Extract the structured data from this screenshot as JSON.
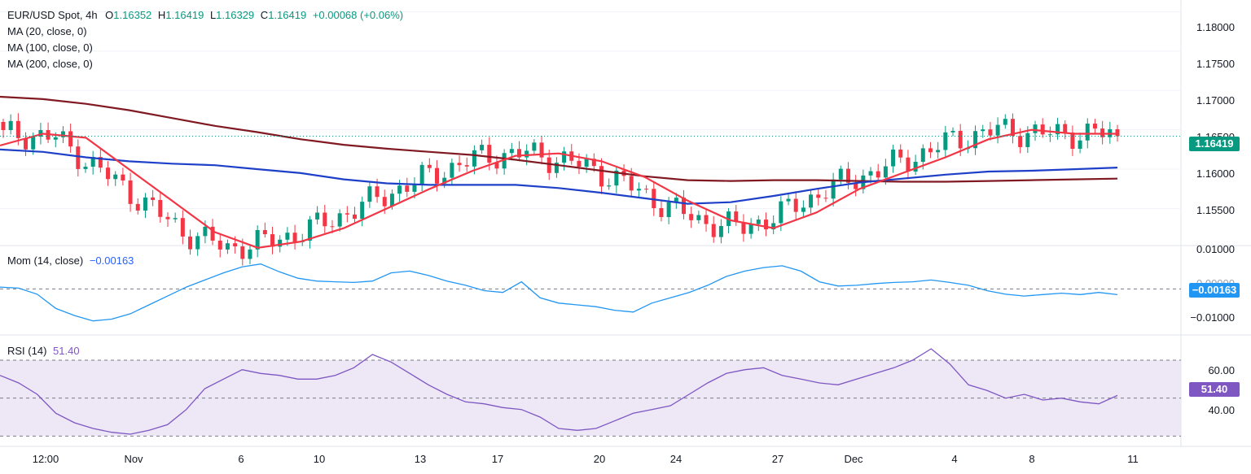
{
  "header": {
    "symbol": "EUR/USD Spot, 4h",
    "o_label": "O",
    "o_value": "1.16352",
    "h_label": "H",
    "h_value": "1.16419",
    "l_label": "L",
    "l_value": "1.16329",
    "c_label": "C",
    "c_value": "1.16419",
    "change": "+0.00068 (+0.06%)"
  },
  "indicators": {
    "ma20": "MA (20, close, 0)",
    "ma100": "MA (100, close, 0)",
    "ma200": "MA (200, close, 0)",
    "mom_label": "Mom (14, close)",
    "mom_value": "−0.00163",
    "rsi_label": "RSI (14)",
    "rsi_value": "51.40"
  },
  "price_badge": "1.16419",
  "mom_badge": "−0.00163",
  "rsi_badge": "51.40",
  "price_axis": [
    "1.18000",
    "1.17500",
    "1.17000",
    "1.16500",
    "1.16000",
    "1.15500"
  ],
  "mom_axis": [
    "0.01000",
    "0.00000",
    "−0.01000"
  ],
  "rsi_axis": [
    "60.00",
    "40.00"
  ],
  "x_axis": [
    "12:00",
    "Nov",
    "6",
    "10",
    "13",
    "17",
    "20",
    "24",
    "27",
    "Dec",
    "4",
    "8",
    "11"
  ],
  "colors": {
    "up": "#089981",
    "down": "#f23645",
    "ma20": "#f23645",
    "ma100": "#1e40c8",
    "ma200": "#801922",
    "mom": "#2196f3",
    "rsi": "#7e57c2",
    "rsi_band": "#ede7f6"
  },
  "chart_data": [
    {
      "type": "candlestick",
      "title": "EUR/USD Spot, 4h",
      "ylim": [
        1.1505,
        1.1815
      ],
      "last_close": 1.16419,
      "ma20": [
        1.163,
        1.1645,
        1.164,
        1.16,
        1.156,
        1.152,
        1.15,
        1.1508,
        1.1525,
        1.155,
        1.1575,
        1.1598,
        1.1617,
        1.162,
        1.161,
        1.159,
        1.156,
        1.1535,
        1.1525,
        1.1545,
        1.1575,
        1.1595,
        1.1615,
        1.1638,
        1.165,
        1.1645,
        1.1645
      ],
      "ma100": [
        1.1625,
        1.1622,
        1.1615,
        1.161,
        1.1607,
        1.1605,
        1.16,
        1.1595,
        1.1587,
        1.1582,
        1.158,
        1.158,
        1.158,
        1.1576,
        1.157,
        1.1563,
        1.1556,
        1.1558,
        1.1566,
        1.1575,
        1.1583,
        1.1588,
        1.1593,
        1.1597,
        1.1598,
        1.16,
        1.1602
      ],
      "ma200": [
        1.1692,
        1.1689,
        1.1683,
        1.1675,
        1.1665,
        1.1655,
        1.1647,
        1.1638,
        1.1631,
        1.1626,
        1.1622,
        1.1618,
        1.1612,
        1.1605,
        1.1598,
        1.1591,
        1.1586,
        1.1585,
        1.1586,
        1.1586,
        1.1585,
        1.1584,
        1.1584,
        1.1585,
        1.1586,
        1.1587,
        1.1588
      ]
    },
    {
      "type": "line",
      "title": "Mom (14, close)",
      "ylim": [
        -0.0125,
        0.0115
      ],
      "values": [
        0.0005,
        0.0002,
        -0.0015,
        -0.0055,
        -0.0075,
        -0.009,
        -0.0085,
        -0.007,
        -0.0045,
        -0.002,
        0.0005,
        0.0025,
        0.0045,
        0.0062,
        0.007,
        0.0048,
        0.003,
        0.0022,
        0.002,
        0.0018,
        0.0022,
        0.0045,
        0.005,
        0.0038,
        0.0022,
        0.001,
        -0.0005,
        -0.001,
        0.002,
        -0.0025,
        -0.004,
        -0.0045,
        -0.005,
        -0.006,
        -0.0065,
        -0.004,
        -0.0025,
        -0.001,
        0.001,
        0.0035,
        0.005,
        0.006,
        0.0065,
        0.005,
        0.002,
        0.0008,
        0.001,
        0.0015,
        0.0018,
        0.002,
        0.0025,
        0.0018,
        0.001,
        -0.0005,
        -0.0015,
        -0.002,
        -0.0016,
        -0.0012,
        -0.0016,
        -0.001,
        -0.00163
      ],
      "last": -0.00163
    },
    {
      "type": "line",
      "title": "RSI (14)",
      "ylim": [
        25,
        82
      ],
      "overbought": 70,
      "mid": 50,
      "oversold": 30,
      "values": [
        62,
        58,
        52,
        42,
        37,
        34,
        32,
        31,
        33,
        36,
        44,
        55,
        60,
        65,
        63,
        62,
        60,
        60,
        62,
        66,
        73,
        69,
        63,
        57,
        52,
        48,
        47,
        45,
        44,
        40,
        34,
        33,
        34,
        38,
        42,
        44,
        46,
        52,
        58,
        63,
        65,
        66,
        62,
        60,
        58,
        57,
        60,
        63,
        66,
        70,
        76,
        68,
        57,
        54,
        50,
        52,
        49,
        50,
        48,
        47,
        51.4
      ],
      "last": 51.4
    }
  ]
}
